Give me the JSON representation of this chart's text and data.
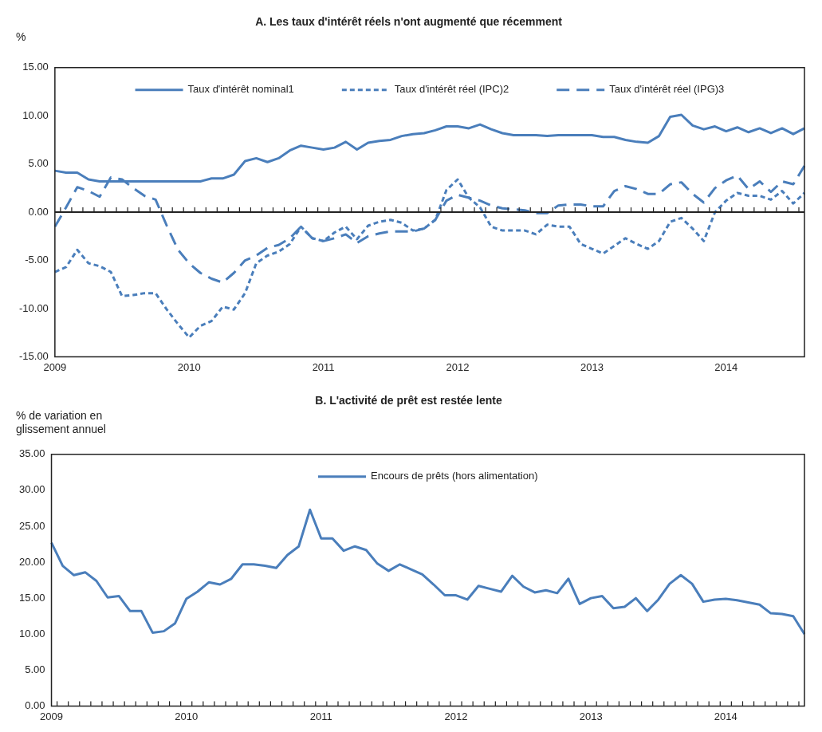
{
  "chart_data": [
    {
      "type": "line",
      "title": "A. Les taux d'intérêt réels n'ont augmenté que récemment",
      "ylabel": "%",
      "categories": [
        "2009",
        null,
        null,
        null,
        null,
        null,
        null,
        null,
        null,
        null,
        null,
        null,
        "2010",
        null,
        null,
        null,
        null,
        null,
        null,
        null,
        null,
        null,
        null,
        null,
        "2011",
        null,
        null,
        null,
        null,
        null,
        null,
        null,
        null,
        null,
        null,
        null,
        "2012",
        null,
        null,
        null,
        null,
        null,
        null,
        null,
        null,
        null,
        null,
        null,
        "2013",
        null,
        null,
        null,
        null,
        null,
        null,
        null,
        null,
        null,
        null,
        null,
        "2014",
        null,
        null,
        null,
        null,
        null,
        null,
        null
      ],
      "series": [
        {
          "name": "Taux d'intérêt nominal1",
          "color": "#4a7ebb",
          "line_style": "solid",
          "values": [
            4.3,
            4.1,
            4.1,
            3.4,
            3.2,
            3.2,
            3.2,
            3.2,
            3.2,
            3.2,
            3.2,
            3.2,
            3.2,
            3.2,
            3.5,
            3.5,
            3.9,
            5.3,
            5.6,
            5.2,
            5.6,
            6.4,
            6.9,
            6.7,
            6.5,
            6.7,
            7.3,
            6.5,
            7.2,
            7.4,
            7.5,
            7.9,
            8.1,
            8.2,
            8.5,
            8.9,
            8.9,
            8.7,
            9.1,
            8.6,
            8.2,
            8.0,
            8.0,
            8.0,
            7.9,
            8.0,
            8.0,
            8.0,
            8.0,
            7.8,
            7.8,
            7.5,
            7.3,
            7.2,
            7.9,
            9.9,
            10.1,
            9.0,
            8.6,
            8.9,
            8.4,
            8.8,
            8.3,
            8.7,
            8.2,
            8.7,
            8.1,
            8.7
          ]
        },
        {
          "name": "Taux d'intérêt réel (IPC)2",
          "color": "#4a7ebb",
          "line_style": "dotted",
          "values": [
            -6.2,
            -5.7,
            -3.9,
            -5.3,
            -5.6,
            -6.2,
            -8.7,
            -8.6,
            -8.4,
            -8.4,
            -10.1,
            -11.6,
            -13.0,
            -11.8,
            -11.3,
            -9.8,
            -10.1,
            -8.4,
            -5.3,
            -4.5,
            -4.1,
            -3.3,
            -1.5,
            -2.7,
            -3.0,
            -2.1,
            -1.5,
            -2.8,
            -1.4,
            -1.0,
            -0.8,
            -1.1,
            -1.9,
            -1.7,
            -0.8,
            2.3,
            3.4,
            1.5,
            0.5,
            -1.5,
            -1.9,
            -1.9,
            -1.9,
            -2.3,
            -1.3,
            -1.5,
            -1.5,
            -3.3,
            -3.8,
            -4.3,
            -3.5,
            -2.7,
            -3.3,
            -3.8,
            -3.0,
            -1.0,
            -0.6,
            -1.7,
            -3.0,
            0.0,
            1.2,
            2.0,
            1.7,
            1.7,
            1.3,
            2.2,
            0.9,
            2.0
          ]
        },
        {
          "name": "Taux d'intérêt réel (IPG)3",
          "color": "#4a7ebb",
          "line_style": "dashed",
          "values": [
            -1.5,
            0.5,
            2.6,
            2.2,
            1.6,
            3.6,
            3.4,
            2.5,
            1.7,
            1.3,
            -1.4,
            -3.9,
            -5.3,
            -6.3,
            -6.9,
            -7.3,
            -6.3,
            -5.0,
            -4.5,
            -3.7,
            -3.4,
            -2.7,
            -1.5,
            -2.7,
            -3.0,
            -2.7,
            -2.3,
            -3.2,
            -2.5,
            -2.2,
            -2.0,
            -2.0,
            -2.0,
            -1.7,
            -0.8,
            1.2,
            1.8,
            1.5,
            1.2,
            0.7,
            0.4,
            0.3,
            0.2,
            -0.1,
            -0.1,
            0.7,
            0.8,
            0.8,
            0.6,
            0.6,
            2.2,
            2.7,
            2.4,
            1.9,
            1.9,
            2.9,
            3.1,
            1.9,
            1.0,
            2.5,
            3.3,
            3.8,
            2.4,
            3.2,
            2.1,
            3.2,
            2.9,
            4.8
          ]
        }
      ],
      "ylim": [
        -15,
        15
      ],
      "yticks": [
        {
          "value": -15,
          "label": "-15.00"
        },
        {
          "value": -10,
          "label": "-10.00"
        },
        {
          "value": -5,
          "label": "-5.00"
        },
        {
          "value": 0,
          "label": "0.00"
        },
        {
          "value": 5,
          "label": "5.00"
        },
        {
          "value": 10,
          "label": "10.00"
        },
        {
          "value": 15,
          "label": "15.00"
        }
      ],
      "ref_lines": [
        {
          "axis": "y",
          "value": 0,
          "color": "#222222"
        }
      ],
      "grid": false,
      "legend": "top",
      "marker": "none"
    },
    {
      "type": "line",
      "title": "B. L'activité de prêt est restée lente",
      "ylabel": "% de variation en glissement annuel",
      "categories": [
        "2009",
        null,
        null,
        null,
        null,
        null,
        null,
        null,
        null,
        null,
        null,
        null,
        "2010",
        null,
        null,
        null,
        null,
        null,
        null,
        null,
        null,
        null,
        null,
        null,
        "2011",
        null,
        null,
        null,
        null,
        null,
        null,
        null,
        null,
        null,
        null,
        null,
        "2012",
        null,
        null,
        null,
        null,
        null,
        null,
        null,
        null,
        null,
        null,
        null,
        "2013",
        null,
        null,
        null,
        null,
        null,
        null,
        null,
        null,
        null,
        null,
        null,
        "2014",
        null,
        null,
        null,
        null,
        null,
        null,
        null
      ],
      "series": [
        {
          "name": "Encours de prêts (hors alimentation)",
          "color": "#4a7ebb",
          "line_style": "solid",
          "values": [
            22.7,
            19.5,
            18.2,
            18.6,
            17.4,
            15.1,
            15.3,
            13.2,
            13.2,
            10.2,
            10.4,
            11.5,
            14.9,
            15.9,
            17.2,
            16.9,
            17.7,
            19.7,
            19.7,
            19.5,
            19.2,
            21.0,
            22.2,
            27.3,
            23.3,
            23.3,
            21.6,
            22.2,
            21.7,
            19.8,
            18.8,
            19.7,
            19.0,
            18.3,
            16.9,
            15.4,
            15.4,
            14.8,
            16.7,
            16.3,
            15.9,
            18.1,
            16.6,
            15.8,
            16.1,
            15.7,
            17.7,
            14.2,
            15.0,
            15.3,
            13.6,
            13.8,
            15.0,
            13.2,
            14.8,
            17.0,
            18.2,
            17.0,
            14.5,
            14.8,
            14.9,
            14.7,
            14.4,
            14.1,
            12.9,
            12.8,
            12.5,
            10.0
          ]
        }
      ],
      "ylim": [
        0,
        35
      ],
      "yticks": [
        {
          "value": 0,
          "label": "0.00"
        },
        {
          "value": 5,
          "label": "5.00"
        },
        {
          "value": 10,
          "label": "10.00"
        },
        {
          "value": 15,
          "label": "15.00"
        },
        {
          "value": 20,
          "label": "20.00"
        },
        {
          "value": 25,
          "label": "25.00"
        },
        {
          "value": 30,
          "label": "30.00"
        },
        {
          "value": 35,
          "label": "35.00"
        }
      ],
      "grid": false,
      "legend": "top",
      "marker": "none"
    }
  ]
}
